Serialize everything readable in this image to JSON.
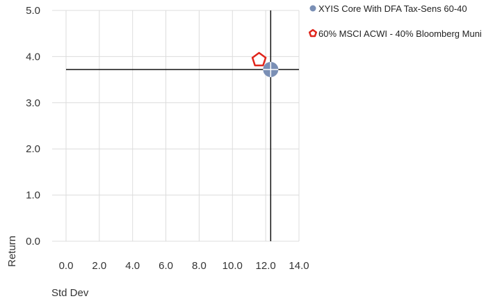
{
  "chart_data": {
    "type": "scatter",
    "title": "",
    "xlabel": "Std Dev",
    "ylabel": "Return",
    "xlim": [
      0,
      14
    ],
    "ylim": [
      0,
      5
    ],
    "x_ticks": [
      "0.0",
      "2.0",
      "4.0",
      "6.0",
      "8.0",
      "10.0",
      "12.0",
      "14.0"
    ],
    "y_ticks": [
      "0.0",
      "1.0",
      "2.0",
      "3.0",
      "4.0",
      "5.0"
    ],
    "grid": true,
    "legend_position": "top-right",
    "series": [
      {
        "name": "XYIS Core With DFA Tax-Sens 60-40",
        "marker": "circle",
        "color": "#7a8fb5",
        "points": [
          {
            "x": 12.3,
            "y": 3.72
          }
        ]
      },
      {
        "name": "60% MSCI ACWI - 40% Bloomberg Muni",
        "marker": "pentagon",
        "color": "#e0251b",
        "points": [
          {
            "x": 11.6,
            "y": 3.93
          }
        ]
      }
    ],
    "reference_lines": {
      "x": 12.3,
      "y": 3.72
    }
  }
}
